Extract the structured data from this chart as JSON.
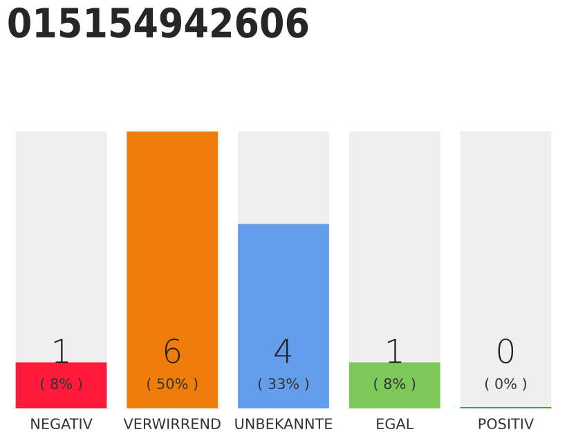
{
  "chart_data": {
    "type": "bar",
    "title": "015154942606",
    "categories": [
      "NEGATIV",
      "VERWIRREND",
      "UNBEKANNTE",
      "EGAL",
      "POSITIV"
    ],
    "values": [
      1,
      6,
      4,
      1,
      0
    ],
    "colors": [
      "#ff1a3c",
      "#f07d0a",
      "#659ded",
      "#7ec85a",
      "#22aa44"
    ],
    "data_labels": true,
    "annotations": [
      "( 8% )",
      "( 50% )",
      "( 33% )",
      "( 8% )",
      "( 0% )"
    ],
    "grid": false,
    "legend": false
  }
}
